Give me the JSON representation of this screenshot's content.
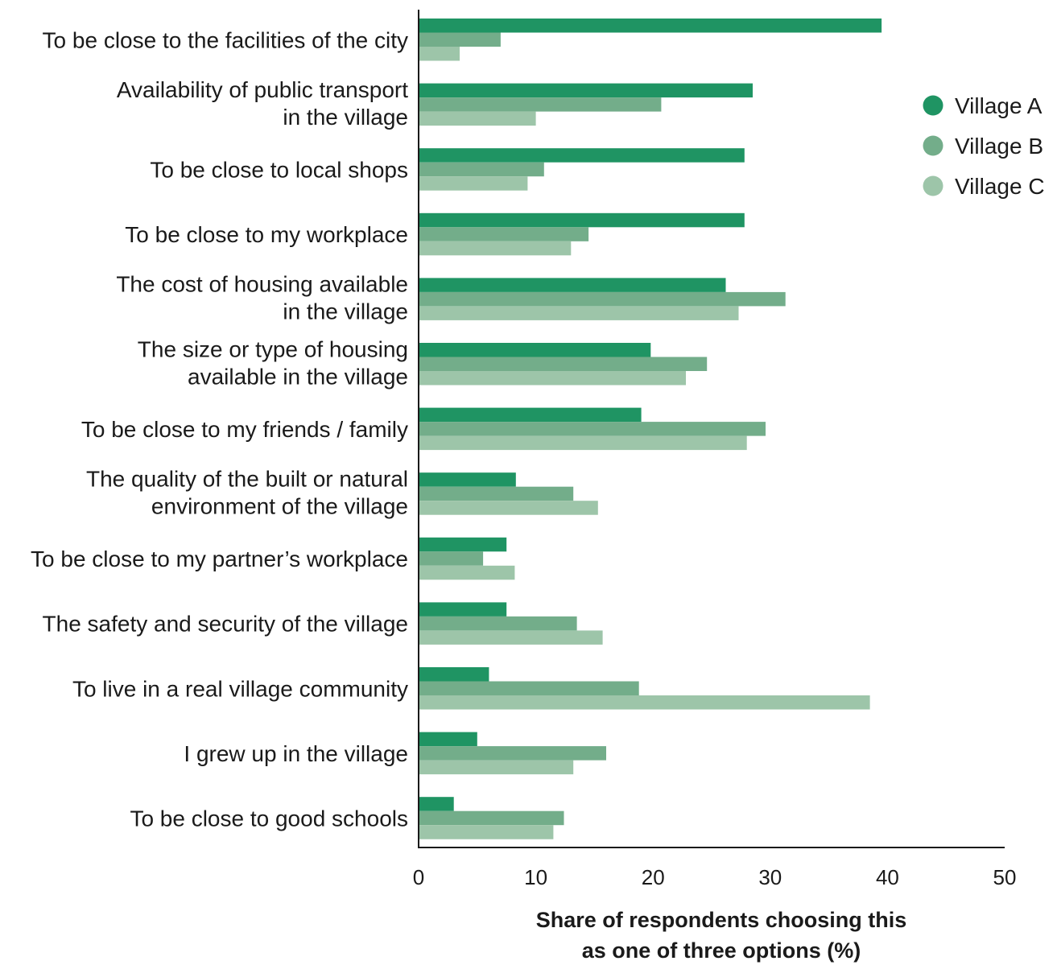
{
  "chart_data": {
    "type": "bar",
    "orientation": "horizontal",
    "categories": [
      [
        "To be close to the facilities of the city"
      ],
      [
        "Availability of public transport",
        "in the village"
      ],
      [
        "To be close to local shops"
      ],
      [
        "To be close to my workplace"
      ],
      [
        "The cost of housing available",
        "in the village"
      ],
      [
        "The size or type of housing",
        "available in the village"
      ],
      [
        "To be close to my friends / family"
      ],
      [
        "The quality of the built or natural",
        "environment of the village"
      ],
      [
        "To be close to my partner’s workplace"
      ],
      [
        "The safety and security of the village"
      ],
      [
        "To live in a real village community"
      ],
      [
        "I grew up in the village"
      ],
      [
        "To be close to good schools"
      ]
    ],
    "series": [
      {
        "name": "Village A",
        "color": "#1f9463",
        "values": [
          39.5,
          28.5,
          27.8,
          27.8,
          26.2,
          19.8,
          19.0,
          8.3,
          7.5,
          7.5,
          6.0,
          5.0,
          3.0
        ]
      },
      {
        "name": "Village B",
        "color": "#73ad8a",
        "values": [
          7.0,
          20.7,
          10.7,
          14.5,
          31.3,
          24.6,
          29.6,
          13.2,
          5.5,
          13.5,
          18.8,
          16.0,
          12.4
        ]
      },
      {
        "name": "Village C",
        "color": "#9dc5a9",
        "values": [
          3.5,
          10.0,
          9.3,
          13.0,
          27.3,
          22.8,
          28.0,
          15.3,
          8.2,
          15.7,
          38.5,
          13.2,
          11.5
        ]
      }
    ],
    "xlim": [
      0,
      50
    ],
    "xticks": [
      0,
      10,
      20,
      30,
      40,
      50
    ],
    "xlabel": [
      "Share of respondents choosing this",
      "as one of three options (%)"
    ],
    "ylabel": "",
    "grid": false,
    "legend_position": "top-right"
  }
}
